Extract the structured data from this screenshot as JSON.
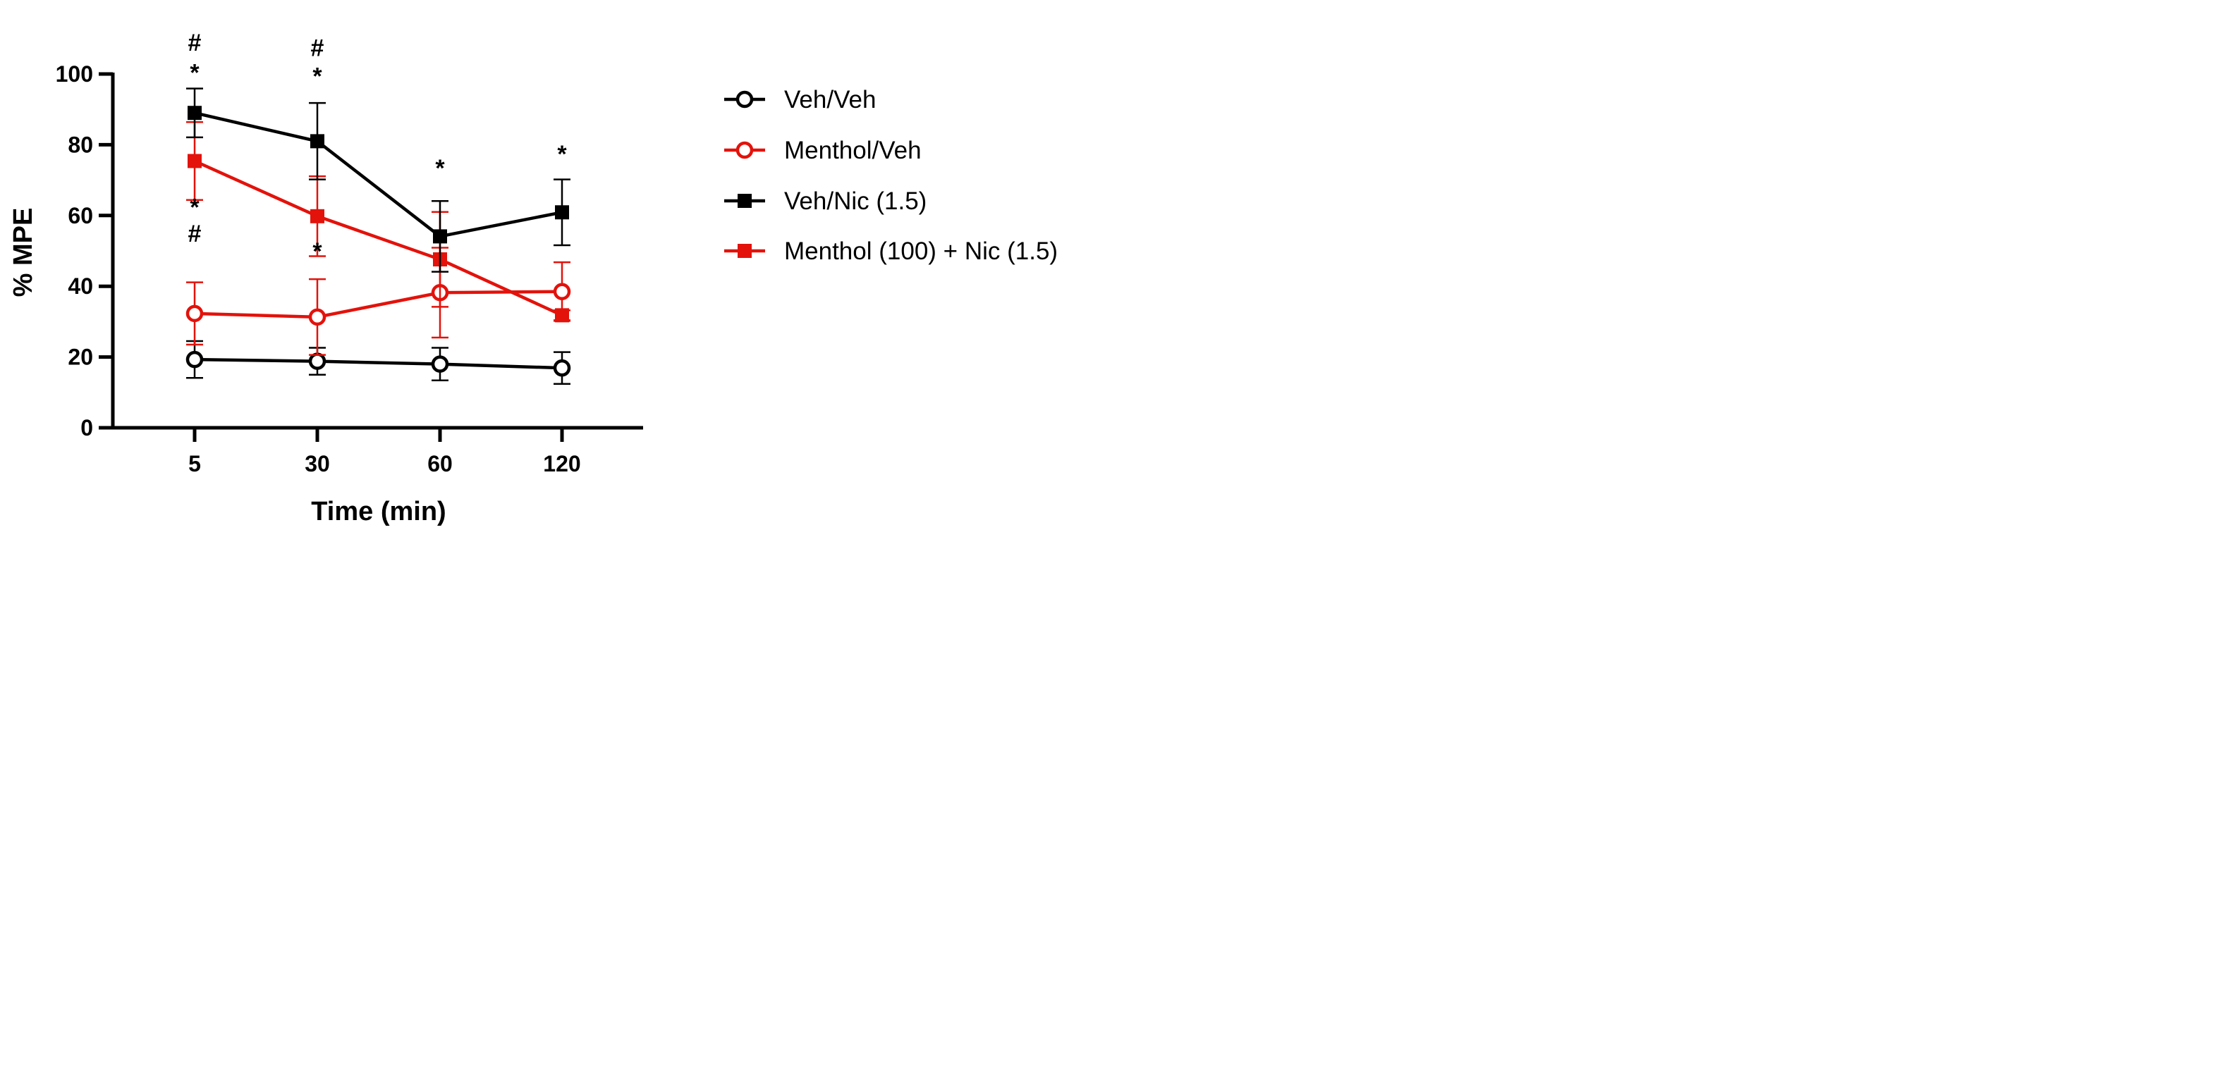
{
  "chart_data": {
    "type": "line",
    "title": "",
    "xlabel": "Time (min)",
    "ylabel": "% MPE",
    "categories": [
      "5",
      "30",
      "60",
      "120"
    ],
    "ylim": [
      0,
      100
    ],
    "yticks": [
      "0",
      "20",
      "40",
      "60",
      "80",
      "100"
    ],
    "grid": false,
    "legend_position": "right",
    "series": [
      {
        "name": "Veh/Veh",
        "color": "#000000",
        "marker": "circle-open",
        "values": [
          19.3,
          18.8,
          18.0,
          16.9
        ],
        "errors": [
          5.2,
          3.8,
          4.6,
          4.5
        ]
      },
      {
        "name": "Menthol/Veh",
        "color": "#e3120b",
        "marker": "circle-open",
        "values": [
          32.3,
          31.3,
          38.2,
          38.5
        ],
        "errors": [
          8.8,
          10.7,
          12.7,
          8.3
        ]
      },
      {
        "name": "Veh/Nic (1.5)",
        "color": "#000000",
        "marker": "square-filled",
        "values": [
          89.0,
          81.0,
          54.1,
          60.9
        ],
        "errors": [
          6.9,
          10.8,
          10.0,
          9.3
        ]
      },
      {
        "name": "Menthol (100) + Nic (1.5)",
        "color": "#e3120b",
        "marker": "square-filled",
        "values": [
          75.4,
          59.8,
          47.6,
          31.8
        ],
        "errors": [
          11.0,
          11.3,
          13.4,
          1.4
        ]
      }
    ],
    "annotations": [
      {
        "category": "5",
        "y": 109,
        "text": "#"
      },
      {
        "category": "5",
        "y": 100.5,
        "text": "*"
      },
      {
        "category": "30",
        "y": 107.5,
        "text": "#"
      },
      {
        "category": "30",
        "y": 99.5,
        "text": "*"
      },
      {
        "category": "60",
        "y": 73.5,
        "text": "*"
      },
      {
        "category": "120",
        "y": 77.5,
        "text": "*"
      },
      {
        "category": "5",
        "y": 62.5,
        "text": "*"
      },
      {
        "category": "5",
        "y": 55,
        "text": "#"
      },
      {
        "category": "30",
        "y": 50,
        "text": "*"
      }
    ]
  }
}
